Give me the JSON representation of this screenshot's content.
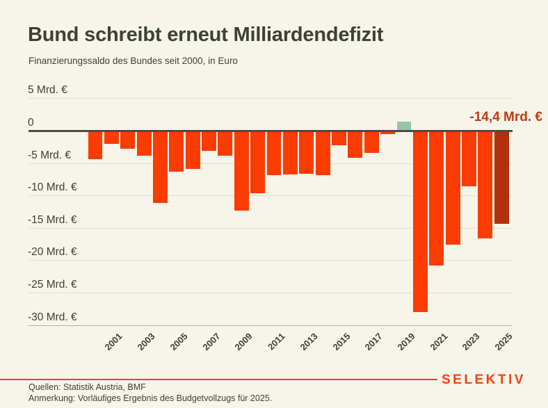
{
  "header": {
    "title": "Bund schreibt erneut Milliardendefizit",
    "subtitle": "Finanzierungssaldo des Bundes seit 2000, in Euro"
  },
  "chart_data": {
    "type": "bar",
    "title": "Bund schreibt erneut Milliardendefizit",
    "subtitle": "Finanzierungssaldo des Bundes seit 2000, in Euro",
    "unit": "Mrd. €",
    "x": [
      2000,
      2001,
      2002,
      2003,
      2004,
      2005,
      2006,
      2007,
      2008,
      2009,
      2010,
      2011,
      2012,
      2013,
      2014,
      2015,
      2016,
      2017,
      2018,
      2019,
      2020,
      2021,
      2022,
      2023,
      2024,
      2025
    ],
    "values": [
      -4.4,
      -2.0,
      -2.8,
      -3.9,
      -11.2,
      -6.3,
      -5.9,
      -3.1,
      -3.9,
      -12.3,
      -9.7,
      -6.9,
      -6.8,
      -6.6,
      -6.9,
      -2.3,
      -4.2,
      -3.4,
      -0.5,
      1.4,
      -28.0,
      -20.8,
      -17.6,
      -8.6,
      -16.6,
      -14.4
    ],
    "ylim": [
      -32,
      5
    ],
    "grid": true,
    "legend": false,
    "y_tick_values": [
      5,
      0,
      -5,
      -10,
      -15,
      -20,
      -25,
      -30
    ],
    "y_tick_labels": [
      "5 Mrd. €",
      "0",
      "-5 Mrd. €",
      "-10 Mrd. €",
      "-15 Mrd. €",
      "-20 Mrd. €",
      "-25 Mrd. €",
      "-30 Mrd. €"
    ],
    "x_tick_labels": [
      "2001",
      "2003",
      "2005",
      "2007",
      "2009",
      "2011",
      "2013",
      "2015",
      "2017",
      "2019",
      "2021",
      "2023",
      "2025"
    ],
    "highlight_year": 2025,
    "annotation": {
      "text": "-14,4 Mrd. €",
      "year": 2025
    },
    "colors": {
      "bar_negative": "#fa3c00",
      "bar_positive": "#96c3a9",
      "bar_highlight": "#b23009",
      "annotation_text": "#c23a0f",
      "zero_line": "#4b4b42",
      "background": "#f7f4e9"
    }
  },
  "footer": {
    "sources": "Quellen: Statistik Austria, BMF",
    "note": "Anmerkung: Vorläufiges Ergebnis des Budgetvollzugs für 2025.",
    "brand": "SELEKTIV",
    "brand_color": "#f2410e"
  }
}
